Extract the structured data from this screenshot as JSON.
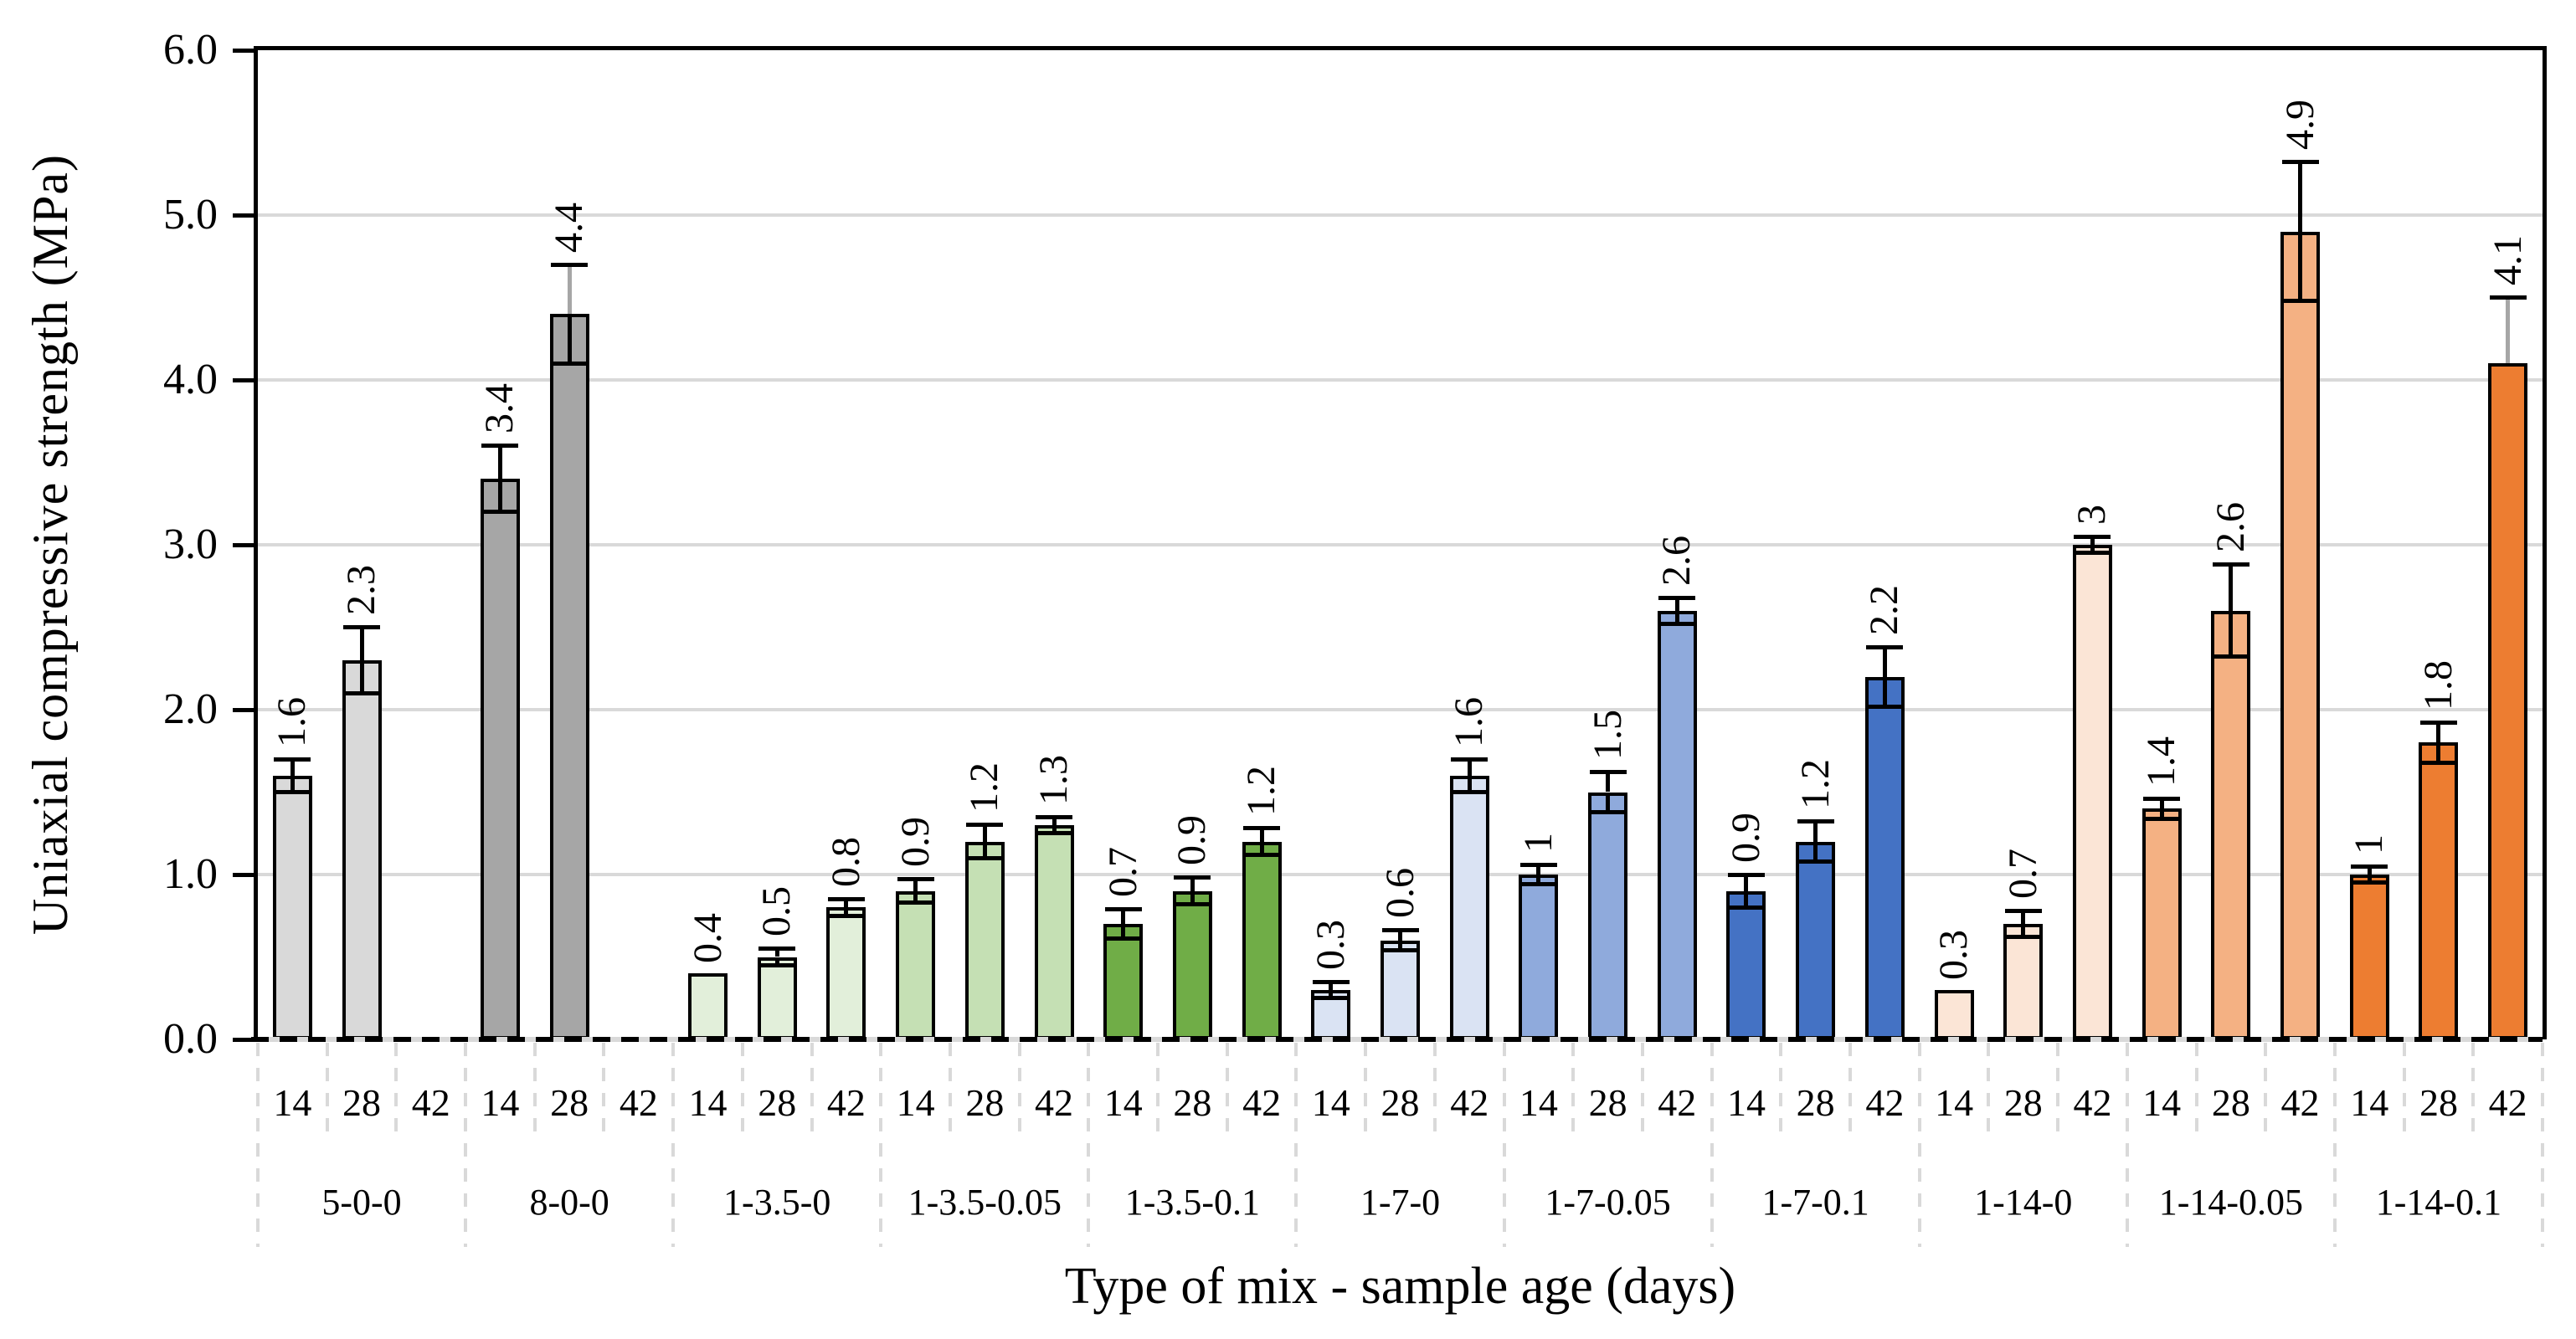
{
  "chart_data": {
    "type": "bar",
    "title": "",
    "ylabel": "Uniaxial compressive strength (MPa)",
    "xlabel": "Type of mix - sample age (days)",
    "ylim": [
      0,
      6
    ],
    "y_tick_labels": [
      "0.0",
      "1.0",
      "2.0",
      "3.0",
      "4.0",
      "5.0",
      "6.0"
    ],
    "grid": "horizontal gridlines every 1.0 MPa, light gray; plot framed black on top/left/right, dashed black baseline at 0",
    "legend": "none",
    "age_labels": [
      "14",
      "28",
      "42"
    ],
    "groups": [
      {
        "label": "5-0-0",
        "color": "#d9d9d9",
        "bars": [
          {
            "age": "14",
            "value": 1.6,
            "label": "1.6",
            "err_up": 0.1,
            "err_down": 0.1
          },
          {
            "age": "28",
            "value": 2.3,
            "label": "2.3",
            "err_up": 0.2,
            "err_down": 0.2
          },
          {
            "age": "42",
            "value": null
          }
        ]
      },
      {
        "label": "8-0-0",
        "color": "#a6a6a6",
        "bars": [
          {
            "age": "14",
            "value": 3.4,
            "label": "3.4",
            "err_up": 0.2,
            "err_down": 0.2
          },
          {
            "age": "28",
            "value": 4.4,
            "label": "4.4",
            "err_up": 0.3,
            "err_down": 0.3,
            "upper_whisker_color": "#a6a6a6"
          },
          {
            "age": "42",
            "value": null
          }
        ]
      },
      {
        "label": "1-3.5-0",
        "color": "#e2efda",
        "bars": [
          {
            "age": "14",
            "value": 0.4,
            "label": "0.4"
          },
          {
            "age": "28",
            "value": 0.5,
            "label": "0.5",
            "err_up": 0.05,
            "err_down": 0.05
          },
          {
            "age": "42",
            "value": 0.8,
            "label": "0.8",
            "err_up": 0.05,
            "err_down": 0.05
          }
        ]
      },
      {
        "label": "1-3.5-0.05",
        "color": "#c5e0b4",
        "bars": [
          {
            "age": "14",
            "value": 0.9,
            "label": "0.9",
            "err_up": 0.07,
            "err_down": 0.07
          },
          {
            "age": "28",
            "value": 1.2,
            "label": "1.2",
            "err_up": 0.1,
            "err_down": 0.1
          },
          {
            "age": "42",
            "value": 1.3,
            "label": "1.3",
            "err_up": 0.05,
            "err_down": 0.05
          }
        ]
      },
      {
        "label": "1-3.5-0.1",
        "color": "#70ad47",
        "bars": [
          {
            "age": "14",
            "value": 0.7,
            "label": "0.7",
            "err_up": 0.09,
            "err_down": 0.09
          },
          {
            "age": "28",
            "value": 0.9,
            "label": "0.9",
            "err_up": 0.08,
            "err_down": 0.08
          },
          {
            "age": "42",
            "value": 1.2,
            "label": "1.2",
            "err_up": 0.08,
            "err_down": 0.08
          }
        ]
      },
      {
        "label": "1-7-0",
        "color": "#dae3f3",
        "bars": [
          {
            "age": "14",
            "value": 0.3,
            "label": "0.3",
            "err_up": 0.05,
            "err_down": 0.05
          },
          {
            "age": "28",
            "value": 0.6,
            "label": "0.6",
            "err_up": 0.06,
            "err_down": 0.06
          },
          {
            "age": "42",
            "value": 1.6,
            "label": "1.6",
            "err_up": 0.1,
            "err_down": 0.1
          }
        ]
      },
      {
        "label": "1-7-0.05",
        "color": "#8faadc",
        "bars": [
          {
            "age": "14",
            "value": 1,
            "label": "1",
            "err_up": 0.06,
            "err_down": 0.06
          },
          {
            "age": "28",
            "value": 1.5,
            "label": "1.5",
            "err_up": 0.12,
            "err_down": 0.12
          },
          {
            "age": "42",
            "value": 2.6,
            "label": "2.6",
            "err_up": 0.08,
            "err_down": 0.08
          }
        ]
      },
      {
        "label": "1-7-0.1",
        "color": "#4472c4",
        "bars": [
          {
            "age": "14",
            "value": 0.9,
            "label": "0.9",
            "err_up": 0.1,
            "err_down": 0.1
          },
          {
            "age": "28",
            "value": 1.2,
            "label": "1.2",
            "err_up": 0.12,
            "err_down": 0.12
          },
          {
            "age": "42",
            "value": 2.2,
            "label": "2.2",
            "err_up": 0.18,
            "err_down": 0.18
          }
        ]
      },
      {
        "label": "1-14-0",
        "color": "#fbe5d6",
        "bars": [
          {
            "age": "14",
            "value": 0.3,
            "label": "0.3"
          },
          {
            "age": "28",
            "value": 0.7,
            "label": "0.7",
            "err_up": 0.08,
            "err_down": 0.08
          },
          {
            "age": "42",
            "value": 3,
            "label": "3",
            "err_up": 0.05,
            "err_down": 0.05
          }
        ]
      },
      {
        "label": "1-14-0.05",
        "color": "#f4b183",
        "bars": [
          {
            "age": "14",
            "value": 1.4,
            "label": "1.4",
            "err_up": 0.06,
            "err_down": 0.06
          },
          {
            "age": "28",
            "value": 2.6,
            "label": "2.6",
            "err_up": 0.28,
            "err_down": 0.28
          },
          {
            "age": "42",
            "value": 4.9,
            "label": "4.9",
            "err_up": 0.42,
            "err_down": 0.42
          }
        ]
      },
      {
        "label": "1-14-0.1",
        "color": "#ed7d31",
        "bars": [
          {
            "age": "14",
            "value": 1,
            "label": "1",
            "err_up": 0.05,
            "err_down": 0.05
          },
          {
            "age": "28",
            "value": 1.8,
            "label": "1.8",
            "err_up": 0.12,
            "err_down": 0.12
          },
          {
            "age": "42",
            "value": 4.1,
            "label": "4.1",
            "err_up": 0.4,
            "upper_whisker_color": "#a6a6a6"
          }
        ]
      }
    ],
    "colors": {
      "bar_outline": "#000000",
      "gridline": "#d9d9d9",
      "separator": "#d9d9d9",
      "error_bar": "#000000",
      "axis": "#000000",
      "background": "#ffffff"
    }
  }
}
